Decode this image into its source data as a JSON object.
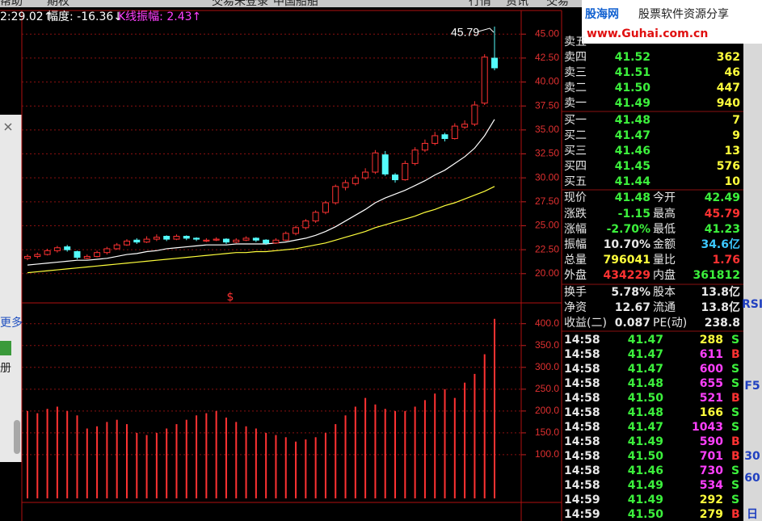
{
  "menu": [
    "帮助",
    "期权",
    "交易未登录",
    "中国船舶",
    "行情",
    "资讯",
    "交易"
  ],
  "indicator_bar": [
    "2:29.02↑",
    "幅度: -16.36↓",
    "K线振幅: 2.43↑"
  ],
  "watermark": {
    "brand": "股海网",
    "slogan": "股票软件资源分享",
    "url": "www.Guhai.com.cn"
  },
  "sidebar": [
    "更多",
    "册"
  ],
  "toolbar": [
    "RSI",
    "F5",
    "30",
    "60",
    "日"
  ],
  "chart_data": [
    {
      "type": "candlestick",
      "annotation": "45.79",
      "marker": "$",
      "categories": [
        null,
        null,
        null,
        null,
        null,
        null,
        null,
        null,
        null,
        null,
        null,
        null,
        null,
        null,
        null,
        null,
        null,
        null,
        null,
        null,
        null,
        null,
        null,
        null,
        null,
        null,
        null,
        null,
        null,
        null,
        null,
        null,
        null,
        null,
        null,
        null,
        null,
        null,
        null,
        null,
        null,
        null,
        null,
        null,
        null,
        null,
        null,
        null
      ],
      "open": [
        21.6,
        21.8,
        22.0,
        22.4,
        22.8,
        22.3,
        21.6,
        21.8,
        22.2,
        22.6,
        23.0,
        23.5,
        23.3,
        23.6,
        23.9,
        23.6,
        23.9,
        23.7,
        23.4,
        23.5,
        23.6,
        23.3,
        23.5,
        23.7,
        23.5,
        23.2,
        23.5,
        24.2,
        24.8,
        25.5,
        26.4,
        27.4,
        29.0,
        29.4,
        30.0,
        30.6,
        32.4,
        30.3,
        29.8,
        31.5,
        32.9,
        33.6,
        34.5,
        34.1,
        35.3,
        35.6,
        37.8,
        42.49
      ],
      "high": [
        22.0,
        22.2,
        22.6,
        22.9,
        23.0,
        22.4,
        22.0,
        22.4,
        22.8,
        23.2,
        23.6,
        23.7,
        23.9,
        24.1,
        24.0,
        24.1,
        24.0,
        23.8,
        23.7,
        23.8,
        23.7,
        23.7,
        23.9,
        23.8,
        23.6,
        23.7,
        24.4,
        25.0,
        25.7,
        26.6,
        27.6,
        29.3,
        29.8,
        30.3,
        31.0,
        32.9,
        32.8,
        30.5,
        31.8,
        33.2,
        34.0,
        34.8,
        34.7,
        35.7,
        36.0,
        38.0,
        42.9,
        45.79
      ],
      "low": [
        21.4,
        21.6,
        21.9,
        22.2,
        22.3,
        21.5,
        21.5,
        21.7,
        22.0,
        22.5,
        22.9,
        23.1,
        23.2,
        23.4,
        23.4,
        23.5,
        23.5,
        23.4,
        23.3,
        23.4,
        23.1,
        23.2,
        23.4,
        23.3,
        23.0,
        23.1,
        23.4,
        24.0,
        24.6,
        25.3,
        26.2,
        27.2,
        28.7,
        29.2,
        29.8,
        30.4,
        30.2,
        29.5,
        29.7,
        31.3,
        32.7,
        33.4,
        33.8,
        34.0,
        35.1,
        35.4,
        37.6,
        41.23
      ],
      "close": [
        21.8,
        22.0,
        22.4,
        22.7,
        22.5,
        21.7,
        21.8,
        22.2,
        22.6,
        23.0,
        23.4,
        23.3,
        23.6,
        23.8,
        23.6,
        23.9,
        23.7,
        23.6,
        23.5,
        23.6,
        23.3,
        23.5,
        23.7,
        23.5,
        23.2,
        23.5,
        24.2,
        24.8,
        25.5,
        26.4,
        27.4,
        29.1,
        29.5,
        30.0,
        30.6,
        32.6,
        30.4,
        29.8,
        31.5,
        32.9,
        33.6,
        34.4,
        34.1,
        35.4,
        35.6,
        37.6,
        42.6,
        41.48
      ],
      "up_color": "#ff3232",
      "down_color": "#54fcfc",
      "series": [
        {
          "color": "#ffffff",
          "values": [
            20.9,
            21.0,
            21.1,
            21.2,
            21.3,
            21.4,
            21.4,
            21.5,
            21.6,
            21.8,
            22.0,
            22.1,
            22.3,
            22.4,
            22.6,
            22.7,
            22.8,
            22.9,
            23.0,
            23.0,
            23.0,
            23.1,
            23.1,
            23.1,
            23.1,
            23.2,
            23.3,
            23.5,
            23.7,
            24.0,
            24.4,
            24.9,
            25.5,
            26.1,
            26.7,
            27.4,
            27.9,
            28.3,
            28.7,
            29.2,
            29.7,
            30.3,
            30.8,
            31.5,
            32.2,
            33.1,
            34.4,
            36.1
          ]
        },
        {
          "color": "#ffff3c",
          "values": [
            20.1,
            20.2,
            20.3,
            20.4,
            20.5,
            20.6,
            20.7,
            20.8,
            20.9,
            21.0,
            21.1,
            21.2,
            21.3,
            21.4,
            21.5,
            21.6,
            21.7,
            21.8,
            21.9,
            22.0,
            22.1,
            22.2,
            22.2,
            22.3,
            22.3,
            22.4,
            22.5,
            22.6,
            22.8,
            23.0,
            23.2,
            23.5,
            23.8,
            24.1,
            24.4,
            24.8,
            25.1,
            25.4,
            25.7,
            26.0,
            26.4,
            26.7,
            27.1,
            27.4,
            27.8,
            28.2,
            28.6,
            29.1
          ]
        }
      ],
      "ylim": [
        17.2,
        46.2
      ],
      "yticks": [
        {
          "value": 20,
          "label": "20.00"
        },
        {
          "value": 22.5,
          "label": "22.50"
        },
        {
          "value": 25,
          "label": "25.00"
        },
        {
          "value": 27.5,
          "label": "27.50"
        },
        {
          "value": 30,
          "label": "30.00"
        },
        {
          "value": 32.5,
          "label": "32.50"
        },
        {
          "value": 35,
          "label": "35.00"
        },
        {
          "value": 37.5,
          "label": "37.50"
        },
        {
          "value": 40,
          "label": "40.00"
        },
        {
          "value": 42.5,
          "label": "42.50"
        },
        {
          "value": 45,
          "label": "45.00"
        }
      ],
      "grid": true
    },
    {
      "type": "bar",
      "categories": [
        null,
        null,
        null,
        null,
        null,
        null,
        null,
        null,
        null,
        null,
        null,
        null,
        null,
        null,
        null,
        null,
        null,
        null,
        null,
        null,
        null,
        null,
        null,
        null,
        null,
        null,
        null,
        null,
        null,
        null,
        null,
        null,
        null,
        null,
        null,
        null,
        null,
        null,
        null,
        null,
        null,
        null,
        null,
        null,
        null,
        null,
        null,
        null
      ],
      "values": [
        200,
        195,
        205,
        210,
        200,
        190,
        160,
        165,
        175,
        180,
        170,
        150,
        145,
        150,
        160,
        170,
        180,
        190,
        195,
        200,
        185,
        175,
        165,
        160,
        150,
        145,
        140,
        130,
        135,
        140,
        150,
        170,
        190,
        210,
        230,
        215,
        205,
        200,
        200,
        210,
        225,
        240,
        250,
        230,
        265,
        285,
        330,
        411
      ],
      "color": "#ff3232",
      "ylim": [
        0,
        442
      ],
      "yticks": [
        {
          "value": 100,
          "label": "100.0"
        },
        {
          "value": 150,
          "label": "150.0"
        },
        {
          "value": 200,
          "label": "200.0"
        },
        {
          "value": 250,
          "label": "250.0"
        },
        {
          "value": 300,
          "label": "300.0"
        },
        {
          "value": 350,
          "label": "350.0"
        },
        {
          "value": 400,
          "label": "400.0"
        }
      ],
      "grid": true
    }
  ],
  "order_book": [
    {
      "label": "卖五"
    },
    {
      "label": "卖四",
      "price": "41.52",
      "volume": 362
    },
    {
      "label": "卖三",
      "price": "41.51",
      "volume": 46
    },
    {
      "label": "卖二",
      "price": "41.50",
      "volume": 447
    },
    {
      "label": "卖一",
      "price": "41.49",
      "volume": 940
    },
    {
      "label": "买一",
      "price": "41.48",
      "volume": 7
    },
    {
      "label": "买二",
      "price": "41.47",
      "volume": 9
    },
    {
      "label": "买三",
      "price": "41.46",
      "volume": 13
    },
    {
      "label": "买四",
      "price": "41.45",
      "volume": 576
    },
    {
      "label": "买五",
      "price": "41.44",
      "volume": 10
    }
  ],
  "quote": [
    [
      {
        "label": "现价",
        "value": "41.48",
        "color": "#3cf03c"
      },
      {
        "label": "今开",
        "value": "42.49",
        "color": "#3cf03c"
      }
    ],
    [
      {
        "label": "涨跌",
        "value": "-1.15",
        "color": "#3cf03c"
      },
      {
        "label": "最高",
        "value": "45.79",
        "color": "#ff3232"
      }
    ],
    [
      {
        "label": "涨幅",
        "value": "-2.70%",
        "color": "#3cf03c"
      },
      {
        "label": "最低",
        "value": "41.23",
        "color": "#3cf03c"
      }
    ],
    [
      {
        "label": "振幅",
        "value": "10.70%",
        "color": "#e8e8e8"
      },
      {
        "label": "金额",
        "value": "34.6亿",
        "color": "#3cc8ff"
      }
    ],
    [
      {
        "label": "总量",
        "value": "796041",
        "color": "#ffff3c"
      },
      {
        "label": "量比",
        "value": "1.76",
        "color": "#ff3232"
      }
    ],
    [
      {
        "label": "外盘",
        "value": "434229",
        "color": "#ff3232"
      },
      {
        "label": "内盘",
        "value": "361812",
        "color": "#3cf03c"
      }
    ],
    [
      {
        "label": "换手",
        "value": "5.78%",
        "color": "#e8e8e8"
      },
      {
        "label": "股本",
        "value": "13.8亿",
        "color": "#e8e8e8"
      }
    ],
    [
      {
        "label": "净资",
        "value": "12.67",
        "color": "#e8e8e8"
      },
      {
        "label": "流通",
        "value": "13.8亿",
        "color": "#e8e8e8"
      }
    ],
    [
      {
        "label": "收益(二)",
        "value": "0.087",
        "color": "#e8e8e8"
      },
      {
        "label": "PE(动)",
        "value": "238.8",
        "color": "#e8e8e8"
      }
    ]
  ],
  "ticks": [
    {
      "time": "14:58",
      "price": "41.47",
      "volume": 288,
      "side": "S"
    },
    {
      "time": "14:58",
      "price": "41.47",
      "volume": 611,
      "side": "B"
    },
    {
      "time": "14:58",
      "price": "41.47",
      "volume": 600,
      "side": "S"
    },
    {
      "time": "14:58",
      "price": "41.48",
      "volume": 655,
      "side": "S"
    },
    {
      "time": "14:58",
      "price": "41.50",
      "volume": 521,
      "side": "B"
    },
    {
      "time": "14:58",
      "price": "41.48",
      "volume": 166,
      "side": "S"
    },
    {
      "time": "14:58",
      "price": "41.47",
      "volume": 1043,
      "side": "S"
    },
    {
      "time": "14:58",
      "price": "41.49",
      "volume": 590,
      "side": "B"
    },
    {
      "time": "14:58",
      "price": "41.50",
      "volume": 701,
      "side": "B"
    },
    {
      "time": "14:58",
      "price": "41.46",
      "volume": 730,
      "side": "S"
    },
    {
      "time": "14:58",
      "price": "41.49",
      "volume": 534,
      "side": "S"
    },
    {
      "time": "14:59",
      "price": "41.49",
      "volume": 292,
      "side": "S"
    },
    {
      "time": "14:59",
      "price": "41.50",
      "volume": 279,
      "side": "B"
    }
  ]
}
